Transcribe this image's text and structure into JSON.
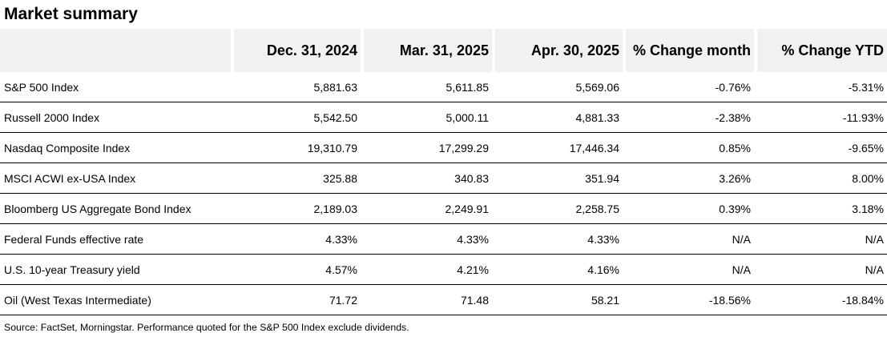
{
  "title": "Market summary",
  "table": {
    "corner_label": "",
    "headers": [
      "Dec. 31, 2024",
      "Mar. 31, 2025",
      "Apr. 30, 2025",
      "% Change month",
      "% Change YTD"
    ],
    "rows": [
      {
        "label": "S&P 500 Index",
        "values": [
          "5,881.63",
          "5,611.85",
          "5,569.06",
          "-0.76%",
          "-5.31%"
        ]
      },
      {
        "label": "Russell 2000 Index",
        "values": [
          "5,542.50",
          "5,000.11",
          "4,881.33",
          "-2.38%",
          "-11.93%"
        ]
      },
      {
        "label": "Nasdaq Composite Index",
        "values": [
          "19,310.79",
          "17,299.29",
          "17,446.34",
          "0.85%",
          "-9.65%"
        ]
      },
      {
        "label": "MSCI ACWI ex-USA Index",
        "values": [
          "325.88",
          "340.83",
          "351.94",
          "3.26%",
          "8.00%"
        ]
      },
      {
        "label": "Bloomberg US Aggregate Bond Index",
        "values": [
          "2,189.03",
          "2,249.91",
          "2,258.75",
          "0.39%",
          "3.18%"
        ]
      },
      {
        "label": "Federal Funds effective rate",
        "values": [
          "4.33%",
          "4.33%",
          "4.33%",
          "N/A",
          "N/A"
        ]
      },
      {
        "label": "U.S. 10-year Treasury yield",
        "values": [
          "4.57%",
          "4.21%",
          "4.16%",
          "N/A",
          "N/A"
        ]
      },
      {
        "label": "Oil (West Texas Intermediate)",
        "values": [
          "71.72",
          "71.48",
          "58.21",
          "-18.56%",
          "-18.84%"
        ]
      }
    ]
  },
  "footer": "Source: FactSet, Morningstar. Performance quoted for the S&P 500 Index exclude dividends.",
  "colors": {
    "header_bg": "#f1f1f1",
    "row_border": "#000000",
    "text": "#000000",
    "background": "#ffffff"
  }
}
